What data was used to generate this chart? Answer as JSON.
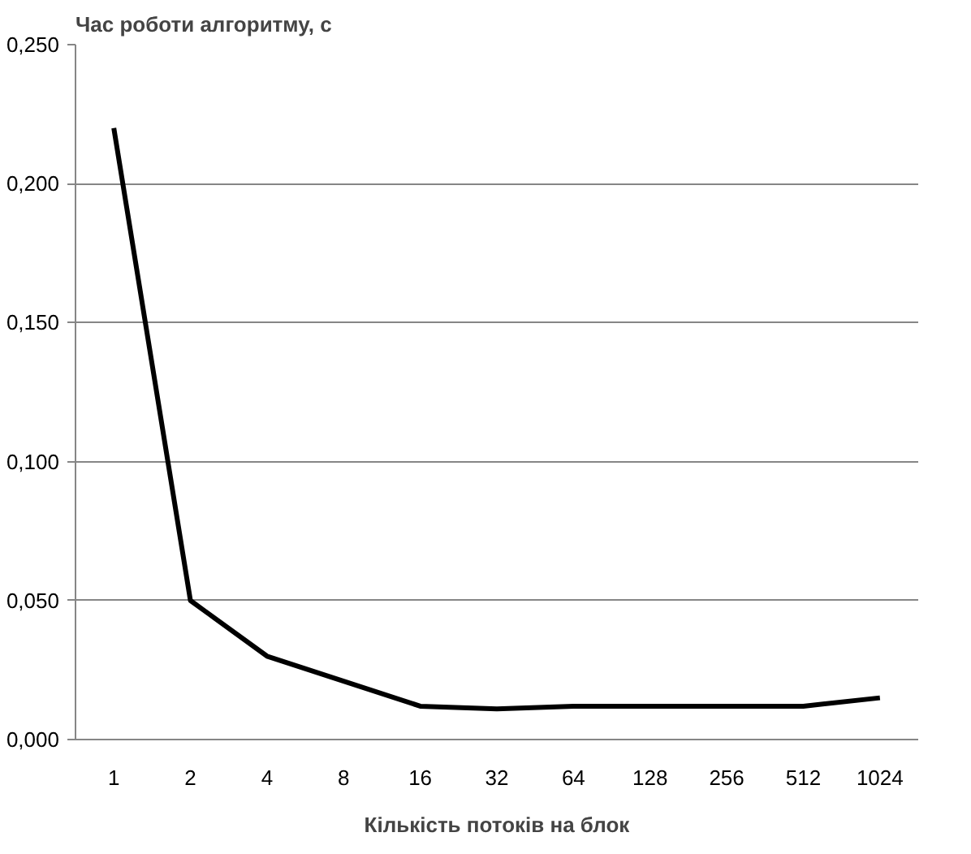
{
  "chart_data": {
    "type": "line",
    "ylabel": "Час роботи алгоритму, с",
    "xlabel": "Кількість потоків на блок",
    "categories": [
      "1",
      "2",
      "4",
      "8",
      "16",
      "32",
      "64",
      "128",
      "256",
      "512",
      "1024"
    ],
    "series": [
      {
        "color": "#000000",
        "values": [
          0.22,
          0.05,
          0.03,
          0.021,
          0.012,
          0.011,
          0.012,
          0.012,
          0.012,
          0.012,
          0.015
        ]
      }
    ],
    "ylim": [
      0,
      0.25
    ],
    "yticks": [
      {
        "value": 0,
        "label": "0,000"
      },
      {
        "value": 0.05,
        "label": "0,050"
      },
      {
        "value": 0.1,
        "label": "0,100"
      },
      {
        "value": 0.15,
        "label": "0,150"
      },
      {
        "value": 0.2,
        "label": "0,200"
      },
      {
        "value": 0.25,
        "label": "0,250"
      }
    ],
    "grid": "y"
  }
}
